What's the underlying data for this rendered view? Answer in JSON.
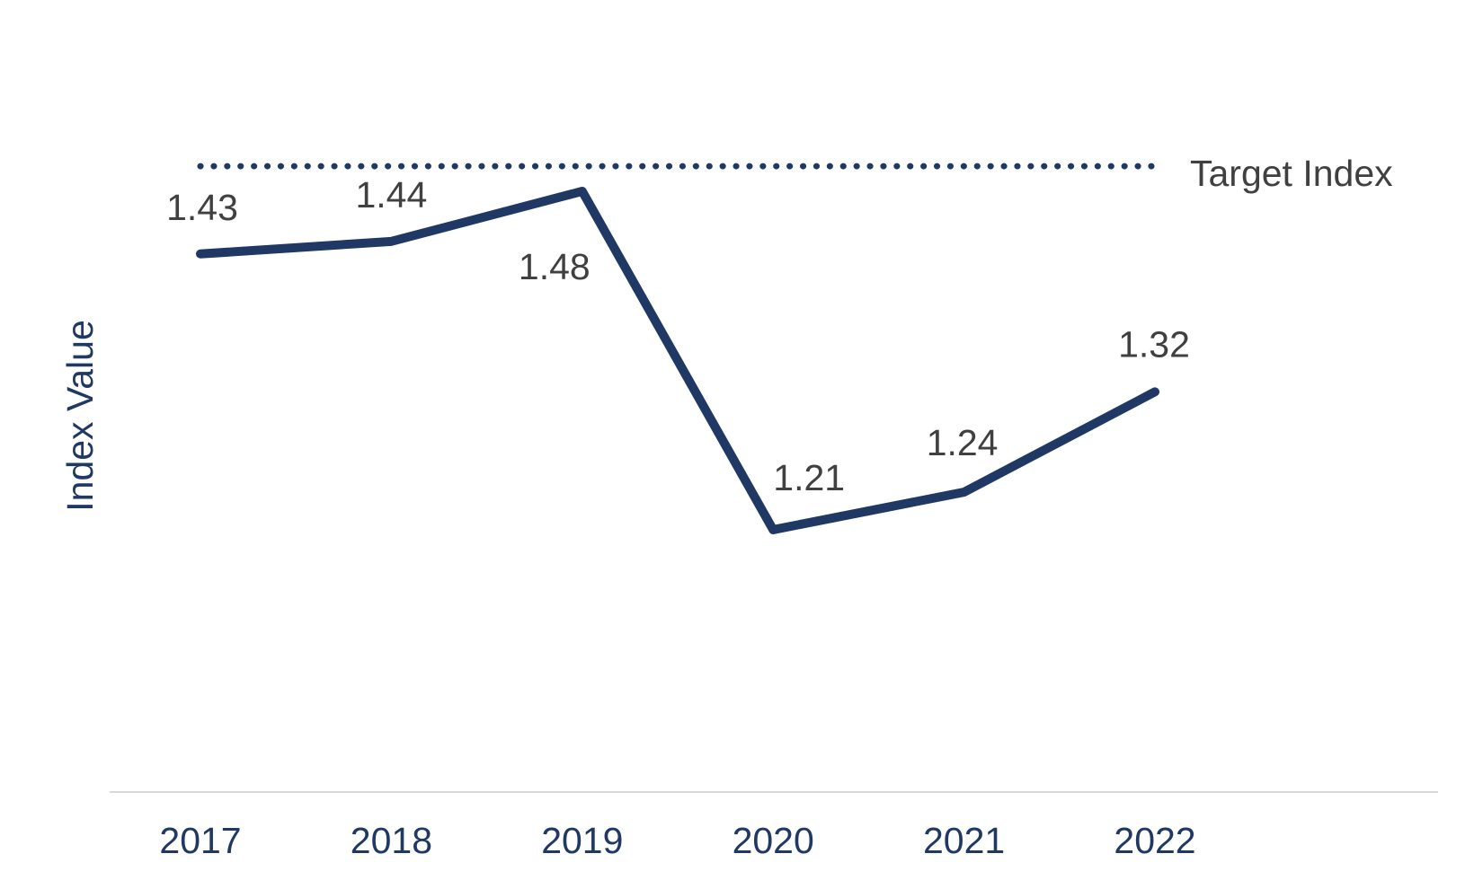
{
  "chart_data": {
    "type": "line",
    "title": "",
    "categories": [
      "2017",
      "2018",
      "2019",
      "2020",
      "2021",
      "2022"
    ],
    "series": [
      {
        "name": "Index Value",
        "values": [
          1.43,
          1.44,
          1.48,
          1.21,
          1.24,
          1.32
        ]
      }
    ],
    "data_labels": [
      "1.43",
      "1.44",
      "1.48",
      "1.21",
      "1.24",
      "1.32"
    ],
    "xlabel": "",
    "ylabel": "Index Value",
    "target_line": {
      "label": "Target Index",
      "value": 1.5,
      "style": "dotted"
    },
    "legend_position": "none",
    "gridlines": false,
    "y_tick_labels_visible": false,
    "colors": {
      "series_line": "#1f3864",
      "target_line": "#1f3864",
      "data_label": "#404040",
      "target_label": "#404040",
      "axis_label": "#1f3864",
      "axis_line": "#d9d9d9",
      "background": "#ffffff"
    }
  }
}
